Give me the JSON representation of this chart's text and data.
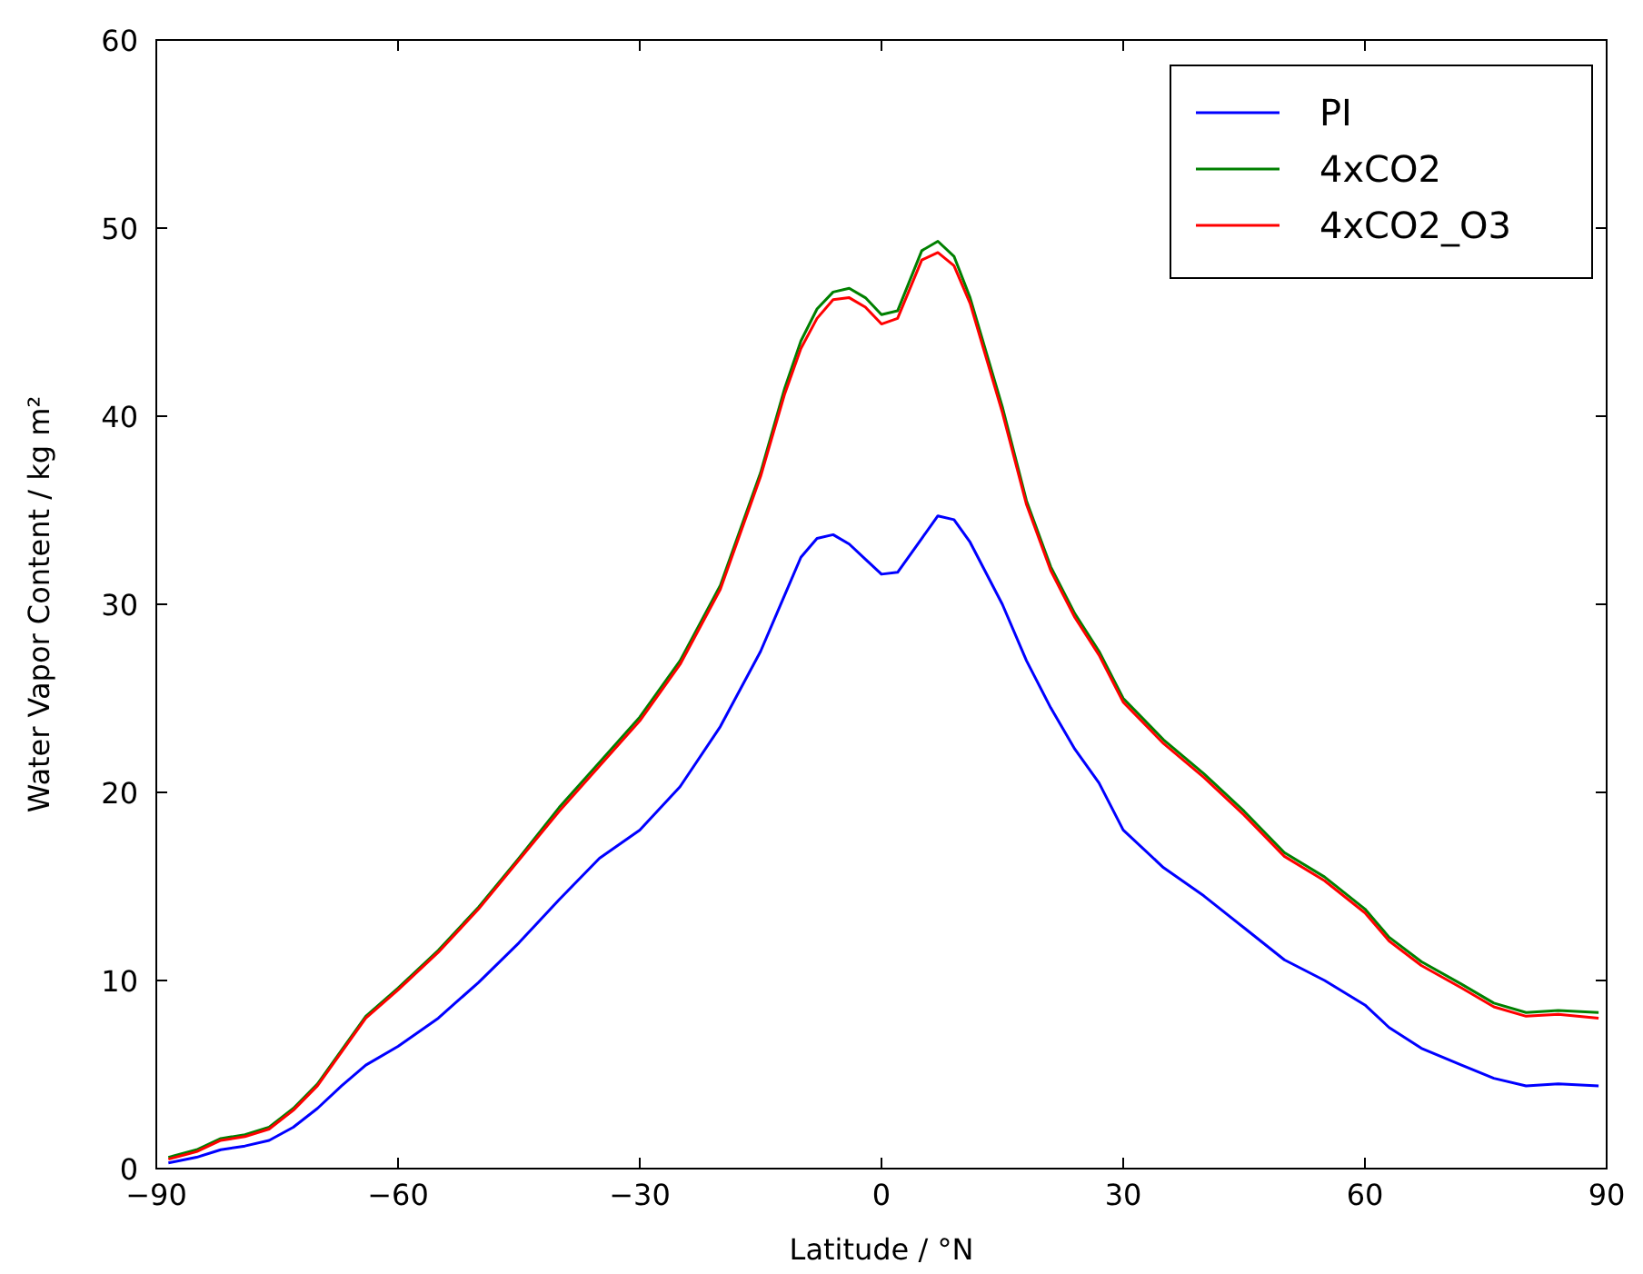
{
  "chart_data": {
    "type": "line",
    "xlabel": "Latitude / °N",
    "ylabel": "Water Vapor Content / kg m²",
    "xlim": [
      -90,
      90
    ],
    "xticks": [
      {
        "value": -90,
        "label": "−90"
      },
      {
        "value": -60,
        "label": "−60"
      },
      {
        "value": -30,
        "label": "−30"
      },
      0,
      30,
      60,
      90
    ],
    "ylim": [
      0,
      60
    ],
    "yticks": [
      0,
      10,
      20,
      30,
      40,
      50,
      60
    ],
    "grid": false,
    "legend": "top right",
    "marker": "none",
    "line_style": "solid",
    "x": [
      -88.5,
      -85,
      -82,
      -79,
      -76,
      -73,
      -70,
      -67,
      -64,
      -60,
      -55,
      -50,
      -45,
      -40,
      -35,
      -30,
      -25,
      -20,
      -15,
      -12,
      -10,
      -8,
      -6,
      -4,
      -2,
      0,
      2,
      5,
      7,
      9,
      11,
      15,
      18,
      21,
      24,
      27,
      30,
      35,
      40,
      45,
      50,
      55,
      60,
      63,
      67,
      72,
      76,
      80,
      84,
      89
    ],
    "series": [
      {
        "name": "PI",
        "color": "#0000ff",
        "values": [
          0.3,
          0.6,
          1.0,
          1.2,
          1.5,
          2.2,
          3.2,
          4.4,
          5.5,
          6.5,
          8.0,
          9.9,
          12.0,
          14.3,
          16.5,
          18.0,
          20.3,
          23.5,
          27.5,
          30.5,
          32.5,
          33.5,
          33.7,
          33.2,
          32.4,
          31.6,
          31.7,
          33.5,
          34.7,
          34.5,
          33.3,
          30.0,
          27.0,
          24.5,
          22.3,
          20.5,
          18.0,
          16.0,
          14.5,
          12.8,
          11.1,
          10.0,
          8.7,
          7.5,
          6.4,
          5.5,
          4.8,
          4.4,
          4.5,
          4.4
        ]
      },
      {
        "name": "4xCO2",
        "color": "#008000",
        "values": [
          0.6,
          1.0,
          1.6,
          1.8,
          2.2,
          3.2,
          4.5,
          6.3,
          8.1,
          9.6,
          11.6,
          13.9,
          16.5,
          19.2,
          21.6,
          24.0,
          27.0,
          31.0,
          37.0,
          41.5,
          44.0,
          45.7,
          46.6,
          46.8,
          46.3,
          45.4,
          45.6,
          48.8,
          49.3,
          48.5,
          46.3,
          40.5,
          35.5,
          32.0,
          29.5,
          27.5,
          25.0,
          22.8,
          21.0,
          19.0,
          16.8,
          15.5,
          13.8,
          12.3,
          11.0,
          9.8,
          8.8,
          8.3,
          8.4,
          8.3
        ]
      },
      {
        "name": "4xCO2_O3",
        "color": "#ff0000",
        "values": [
          0.5,
          0.9,
          1.5,
          1.7,
          2.1,
          3.1,
          4.4,
          6.2,
          8.0,
          9.5,
          11.5,
          13.8,
          16.4,
          19.0,
          21.4,
          23.8,
          26.8,
          30.8,
          36.8,
          41.2,
          43.6,
          45.2,
          46.2,
          46.3,
          45.8,
          44.9,
          45.2,
          48.3,
          48.7,
          48.0,
          46.0,
          40.2,
          35.3,
          31.8,
          29.3,
          27.3,
          24.8,
          22.6,
          20.8,
          18.8,
          16.6,
          15.3,
          13.6,
          12.1,
          10.8,
          9.6,
          8.6,
          8.1,
          8.2,
          8.0
        ]
      }
    ]
  }
}
